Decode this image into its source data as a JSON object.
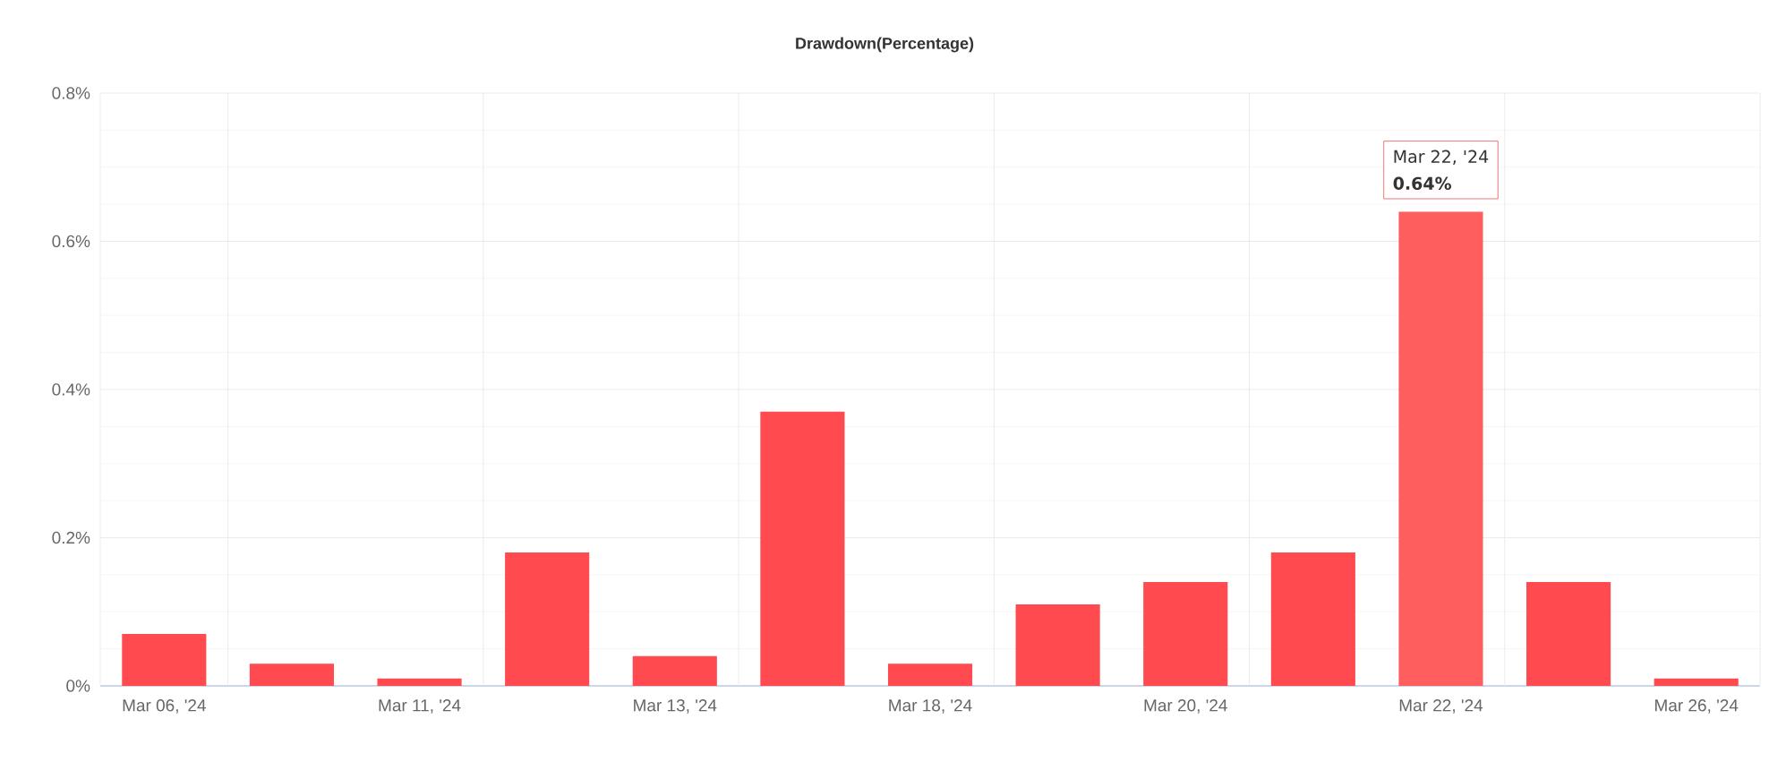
{
  "chart_data": {
    "type": "bar",
    "title": "Drawdown(Percentage)",
    "categories": [
      "Mar 06, '24",
      null,
      "Mar 11, '24",
      null,
      "Mar 13, '24",
      null,
      "Mar 18, '24",
      null,
      "Mar 20, '24",
      null,
      "Mar 22, '24",
      null,
      "Mar 26, '24"
    ],
    "values": [
      0.07,
      0.03,
      0.01,
      0.18,
      0.04,
      0.37,
      0.03,
      0.11,
      0.14,
      0.18,
      0.64,
      0.14,
      0.01
    ],
    "colors": [
      "#ff4a4f",
      "#ff4a4f",
      "#ff4a4f",
      "#ff4a4f",
      "#ff4a4f",
      "#ff4a4f",
      "#ff4a4f",
      "#ff4a4f",
      "#ff4a4f",
      "#ff4a4f",
      "#ff5e5e",
      "#ff4a4f",
      "#ff4a4f"
    ],
    "ylim": [
      0,
      0.8
    ],
    "yticks": [
      {
        "value": 0,
        "label": "0%"
      },
      {
        "value": 0.2,
        "label": "0.2%"
      },
      {
        "value": 0.4,
        "label": "0.4%"
      },
      {
        "value": 0.6,
        "label": "0.6%"
      },
      {
        "value": 0.8,
        "label": "0.8%"
      }
    ],
    "grid": true,
    "annotations": [
      {
        "text": "Mar 22, '24",
        "x": "Mar 22, '24",
        "y": 0.64
      },
      {
        "text": "**0.64%**",
        "x": "Mar 22, '24",
        "y": 0.64
      }
    ]
  }
}
